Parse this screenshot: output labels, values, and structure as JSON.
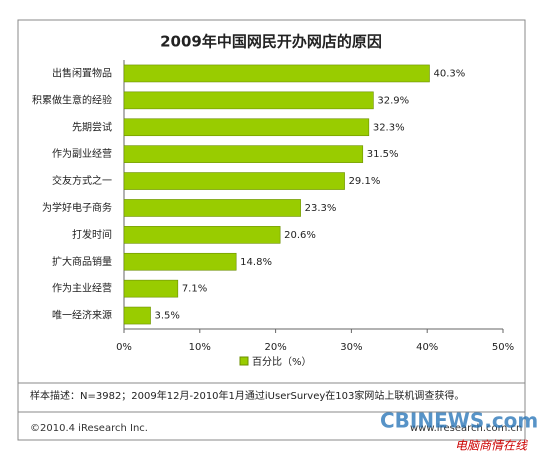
{
  "chart_data": {
    "type": "bar",
    "orientation": "horizontal",
    "title": "2009年中国网民开办网店的原因",
    "categories": [
      "出售闲置物品",
      "积累做生意的经验",
      "先期尝试",
      "作为副业经营",
      "交友方式之一",
      "为学好电子商务",
      "打发时间",
      "扩大商品销量",
      "作为主业经营",
      "唯一经济来源"
    ],
    "values": [
      40.3,
      32.9,
      32.3,
      31.5,
      29.1,
      23.3,
      20.6,
      14.8,
      7.1,
      3.5
    ],
    "value_labels": [
      "40.3%",
      "32.9%",
      "32.3%",
      "31.5%",
      "29.1%",
      "23.3%",
      "20.6%",
      "14.8%",
      "7.1%",
      "3.5%"
    ],
    "color": "#99cc00",
    "legend": "百分比（%）",
    "xlim": [
      0,
      50
    ],
    "xticks": [
      {
        "value": 0,
        "label": "0%"
      },
      {
        "value": 10,
        "label": "10%"
      },
      {
        "value": 20,
        "label": "20%"
      },
      {
        "value": 30,
        "label": "30%"
      },
      {
        "value": 40,
        "label": "40%"
      },
      {
        "value": 50,
        "label": "50%"
      }
    ],
    "note": "样本描述：N=3982；2009年12月-2010年1月通过iUserSurvey在103家网站上联机调查获得。",
    "source": "©2010.4 iResearch Inc.",
    "website": "www.iresearch.com.cn",
    "watermark": "CBINEWS.com",
    "watermark_sub": "电脑商情在线"
  }
}
